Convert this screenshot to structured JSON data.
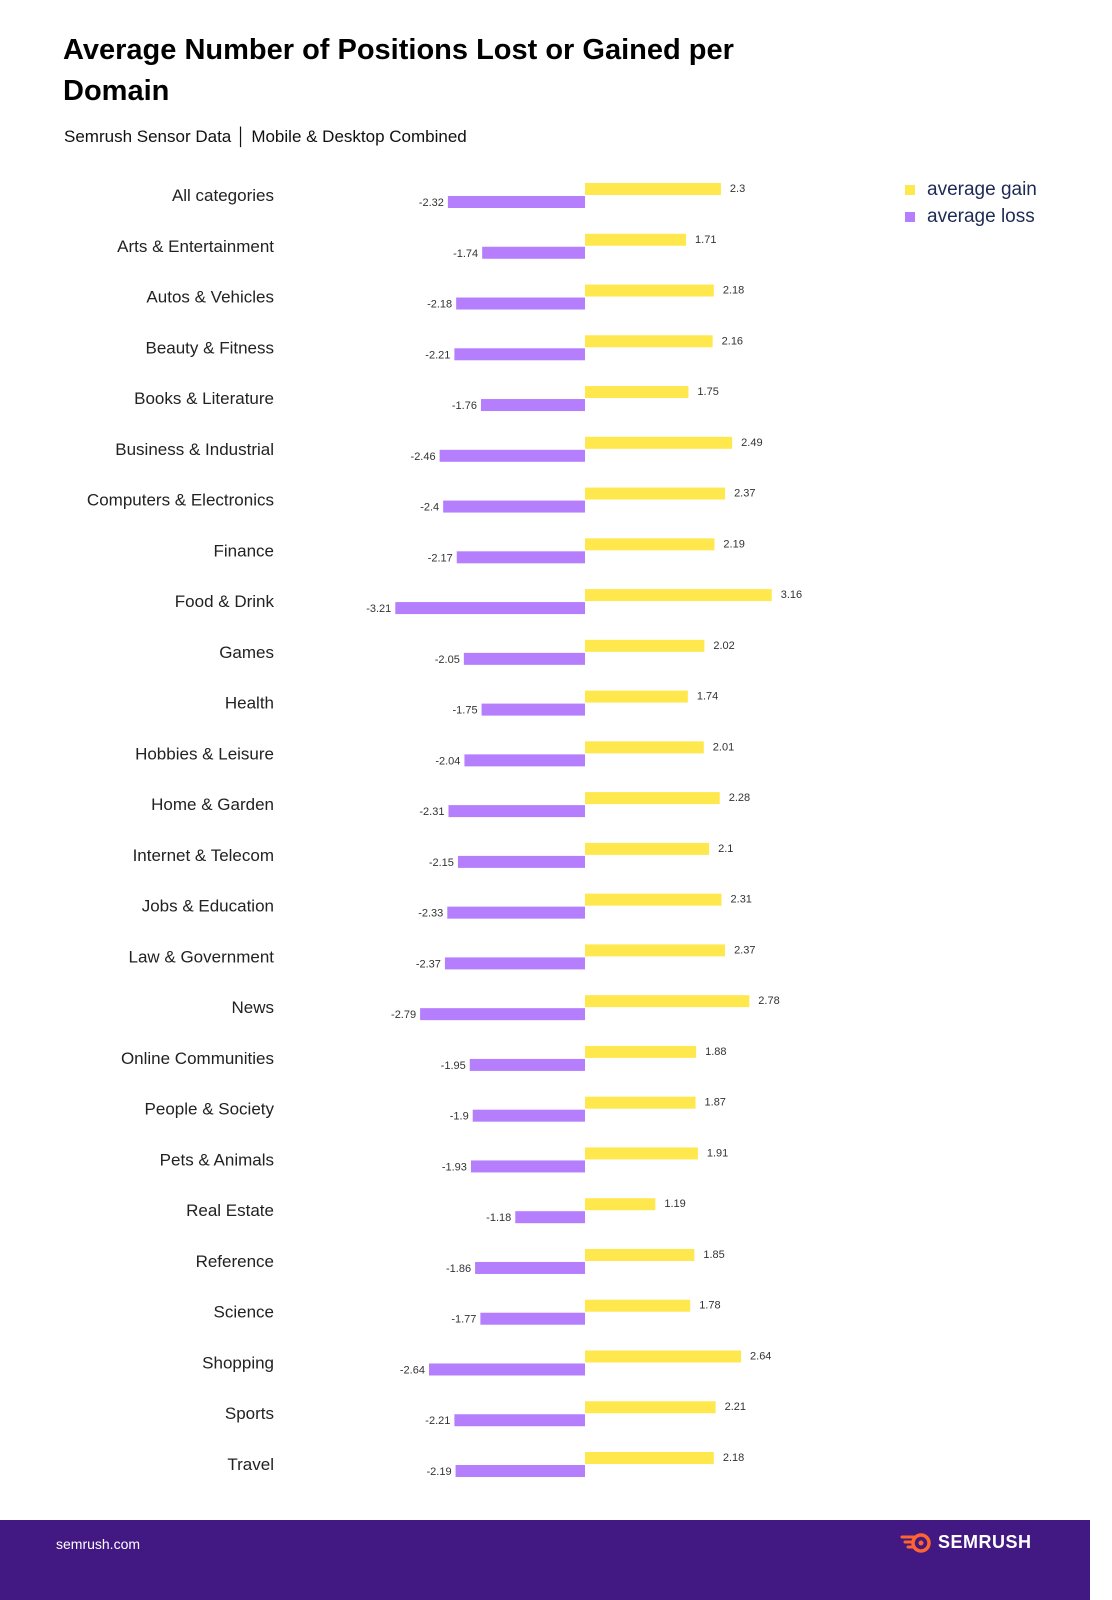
{
  "chart_data": {
    "type": "bar",
    "orientation": "horizontal",
    "title": "Average Number of Positions Lost or Gained per Domain",
    "subtitle": "Semrush Sensor Data │ Mobile & Desktop Combined",
    "categories": [
      "All categories",
      "Arts & Entertainment",
      "Autos & Vehicles",
      "Beauty & Fitness",
      "Books & Literature",
      "Business & Industrial",
      "Computers & Electronics",
      "Finance",
      "Food & Drink",
      "Games",
      "Health",
      "Hobbies & Leisure",
      "Home & Garden",
      "Internet & Telecom",
      "Jobs & Education",
      "Law & Government",
      "News",
      "Online Communities",
      "People & Society",
      "Pets & Animals",
      "Real Estate",
      "Reference",
      "Science",
      "Shopping",
      "Sports",
      "Travel"
    ],
    "series": [
      {
        "name": "average gain",
        "color": "#ffe84d",
        "values": [
          2.3,
          1.71,
          2.18,
          2.16,
          1.75,
          2.49,
          2.37,
          2.19,
          3.16,
          2.02,
          1.74,
          2.01,
          2.28,
          2.1,
          2.31,
          2.37,
          2.78,
          1.88,
          1.87,
          1.91,
          1.19,
          1.85,
          1.78,
          2.64,
          2.21,
          2.18
        ]
      },
      {
        "name": "average loss",
        "color": "#b57efc",
        "values": [
          -2.32,
          -1.74,
          -2.18,
          -2.21,
          -1.76,
          -2.46,
          -2.4,
          -2.17,
          -3.21,
          -2.05,
          -1.75,
          -2.04,
          -2.31,
          -2.15,
          -2.33,
          -2.37,
          -2.79,
          -1.95,
          -1.9,
          -1.93,
          -1.18,
          -1.86,
          -1.77,
          -2.64,
          -2.21,
          -2.19
        ]
      }
    ],
    "xlim": [
      -3.21,
      3.16
    ],
    "grid": false,
    "legend": "top-right",
    "data_labels": true
  },
  "footer": {
    "site": "semrush.com",
    "brand": "SEMRUSH",
    "background": "#421983",
    "logo_color": "#ff642d"
  }
}
